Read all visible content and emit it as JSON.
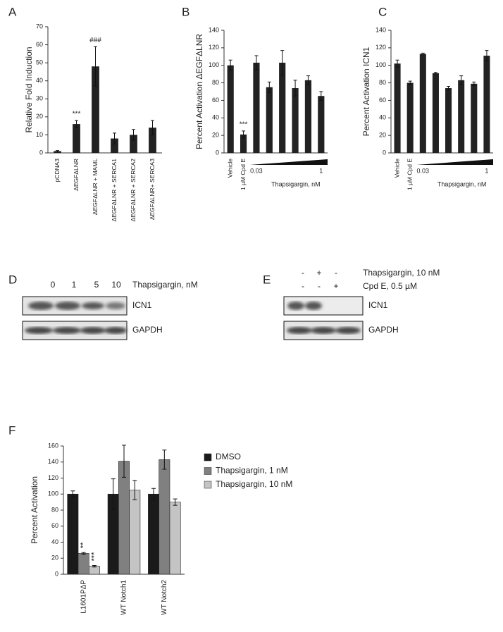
{
  "chart_data": [
    {
      "type": "bar",
      "label": "A",
      "ylabel": "Relative Fold Induction",
      "categories": [
        "pCDNA3",
        "ΔEGFΔLNR",
        "ΔEGFΔLNR + MAML",
        "ΔEGFΔLNR + SERCA1",
        "ΔEGFΔLNR + SERCA2",
        "ΔEGFΔLNR+ SERCA3"
      ],
      "values": [
        1,
        16,
        48,
        8,
        10,
        14
      ],
      "errors": [
        0.3,
        2,
        11,
        3,
        3,
        4
      ],
      "bar_annotations": [
        null,
        "***",
        "###",
        null,
        null,
        null
      ],
      "color": "#222222",
      "ylim": [
        0,
        70
      ],
      "yticks": [
        0,
        10,
        20,
        30,
        40,
        50,
        60,
        70
      ]
    },
    {
      "type": "bar",
      "label": "B",
      "ylabel": "Percent Activation ΔEGFΔLNR",
      "categories": [
        "Vehicle",
        "1 µM Cpd E",
        null,
        null,
        null,
        null,
        null,
        null
      ],
      "dose_labels": [
        null,
        null,
        "0.03",
        null,
        null,
        null,
        null,
        "1"
      ],
      "xlabel": "Thapsigargin, nM",
      "values": [
        100,
        21,
        103,
        75,
        103,
        74,
        83,
        65
      ],
      "errors": [
        6,
        4,
        8,
        6,
        14,
        9,
        5,
        5
      ],
      "bar_annotations": [
        null,
        "***",
        null,
        null,
        null,
        null,
        null,
        null
      ],
      "color": "#222222",
      "ylim": [
        0,
        140
      ],
      "yticks": [
        0,
        20,
        40,
        60,
        80,
        100,
        120,
        140
      ]
    },
    {
      "type": "bar",
      "label": "C",
      "ylabel": "Percent Activation ICN1",
      "categories": [
        "Vehicle",
        "1 µM Cpd E",
        null,
        null,
        null,
        null,
        null,
        null
      ],
      "dose_labels": [
        null,
        null,
        "0.03",
        null,
        null,
        null,
        null,
        "1"
      ],
      "xlabel": "Thapsigargin, nM",
      "values": [
        102,
        80,
        113,
        91,
        74,
        83,
        79,
        111
      ],
      "errors": [
        4,
        2,
        1,
        1,
        2,
        5,
        2,
        6
      ],
      "color": "#222222",
      "ylim": [
        0,
        140
      ],
      "yticks": [
        0,
        20,
        40,
        60,
        80,
        100,
        120,
        140
      ]
    },
    {
      "type": "bar",
      "label": "F",
      "ylabel": "Percent Activation",
      "categories": [
        "L1601PΔP",
        "WT Notch1",
        "WT Notch2"
      ],
      "series": [
        {
          "name": "DMSO",
          "color": "#1a1a1a",
          "values": [
            100,
            100,
            100
          ],
          "errors": [
            4,
            19,
            7
          ]
        },
        {
          "name": "Thapsigargin, 1 nM",
          "color": "#808080",
          "values": [
            26,
            141,
            143
          ],
          "errors": [
            1,
            20,
            12
          ],
          "annotations": [
            "**",
            null,
            null
          ]
        },
        {
          "name": "Thapsigargin, 10 nM",
          "color": "#c4c4c4",
          "values": [
            10,
            105,
            90
          ],
          "errors": [
            1,
            12,
            4
          ],
          "annotations": [
            "***",
            null,
            null
          ]
        }
      ],
      "legend": "right",
      "ylim": [
        0,
        160
      ],
      "yticks": [
        0,
        20,
        40,
        60,
        80,
        100,
        120,
        140,
        160
      ]
    }
  ],
  "blots": [
    {
      "label": "D",
      "lanes": [
        "0",
        "1",
        "5",
        "10"
      ],
      "lane_title": "Thapsigargin, nM",
      "rows": [
        "ICN1",
        "GAPDH"
      ]
    },
    {
      "label": "E",
      "conditions": [
        {
          "name": "Thapsigargin, 10 nM",
          "signs": [
            "-",
            "+",
            "-"
          ]
        },
        {
          "name": "Cpd E, 0.5 µM",
          "signs": [
            "-",
            "-",
            "+"
          ]
        }
      ],
      "rows": [
        "ICN1",
        "GAPDH"
      ]
    }
  ]
}
